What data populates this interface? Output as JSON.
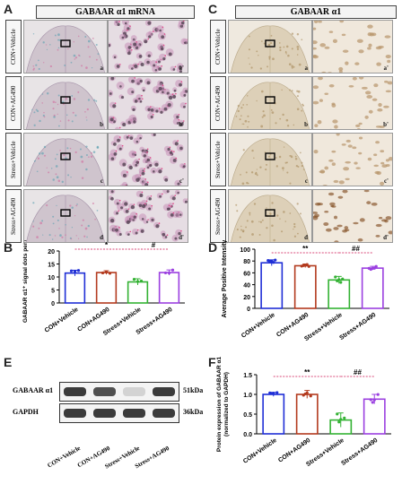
{
  "panels": {
    "A": {
      "letter": "A",
      "title": "GABAAR α1 mRNA"
    },
    "C": {
      "letter": "C",
      "title": "GABAAR α1"
    },
    "B": {
      "letter": "B"
    },
    "D": {
      "letter": "D"
    },
    "E": {
      "letter": "E"
    },
    "F": {
      "letter": "F"
    }
  },
  "rows": [
    "CON+Vehicle",
    "CON+AG490",
    "Stress+Vehicle",
    "Stress+AG490"
  ],
  "sublabels": {
    "left": [
      "a",
      "b",
      "c",
      "d"
    ],
    "right": [
      "a'",
      "b'",
      "c'",
      "d'"
    ]
  },
  "colors": {
    "CON+Vehicle": "#1f2fd6",
    "CON+AG490": "#b33a1e",
    "Stress+Vehicle": "#33b233",
    "Stress+AG490": "#9b40e0"
  },
  "chart_data": [
    {
      "panel": "B",
      "type": "bar",
      "categories": [
        "CON+Vehicle",
        "CON+AG490",
        "Stress+Vehicle",
        "Stress+AG490"
      ],
      "values": [
        11.5,
        11.7,
        8.1,
        11.7
      ],
      "errors": [
        1.1,
        0.7,
        1.2,
        1.0
      ],
      "ylabel": "GABAAR α1⁺ signal dots per cell",
      "ylim": [
        0,
        20
      ],
      "yticks": [
        0,
        5,
        10,
        15,
        20
      ],
      "sig": [
        {
          "from": 0,
          "to": 2,
          "label": "*"
        },
        {
          "from": 2,
          "to": 3,
          "label": "#"
        }
      ]
    },
    {
      "panel": "D",
      "type": "bar",
      "categories": [
        "CON+Vehicle",
        "CON+AG490",
        "Stress+Vehicle",
        "Stress+AG490"
      ],
      "values": [
        77,
        72,
        48,
        68
      ],
      "errors": [
        5,
        3,
        6,
        3
      ],
      "ylabel": "Average Positive Intensity",
      "ylim": [
        0,
        100
      ],
      "yticks": [
        0,
        20,
        40,
        60,
        80,
        100
      ],
      "sig": [
        {
          "from": 0,
          "to": 2,
          "label": "**"
        },
        {
          "from": 2,
          "to": 3,
          "label": "##"
        }
      ]
    },
    {
      "panel": "F",
      "type": "bar",
      "categories": [
        "CON+Vehicle",
        "CON+AG490",
        "Stress+Vehicle",
        "Stress+AG490"
      ],
      "values": [
        1.0,
        1.0,
        0.35,
        0.88
      ],
      "errors": [
        0.05,
        0.1,
        0.18,
        0.12
      ],
      "ylabel": "Protein expression of GABAAR α1 (normalized to GAPDH)",
      "ylim": [
        0,
        1.5
      ],
      "yticks": [
        0.0,
        0.5,
        1.0,
        1.5
      ],
      "sig": [
        {
          "from": 0,
          "to": 2,
          "label": "**"
        },
        {
          "from": 2,
          "to": 3,
          "label": "##"
        }
      ]
    }
  ],
  "western": {
    "bands": [
      {
        "name": "GABAAR α1",
        "kda": "51kDa",
        "intensity": [
          0.9,
          0.8,
          0.2,
          0.9
        ]
      },
      {
        "name": "GAPDH",
        "kda": "36kDa",
        "intensity": [
          0.9,
          0.9,
          0.9,
          0.9
        ]
      }
    ],
    "lanes": [
      "CON+Vehicle",
      "CON+AG490",
      "Stress+Vehicle",
      "Stress+AG490"
    ]
  }
}
